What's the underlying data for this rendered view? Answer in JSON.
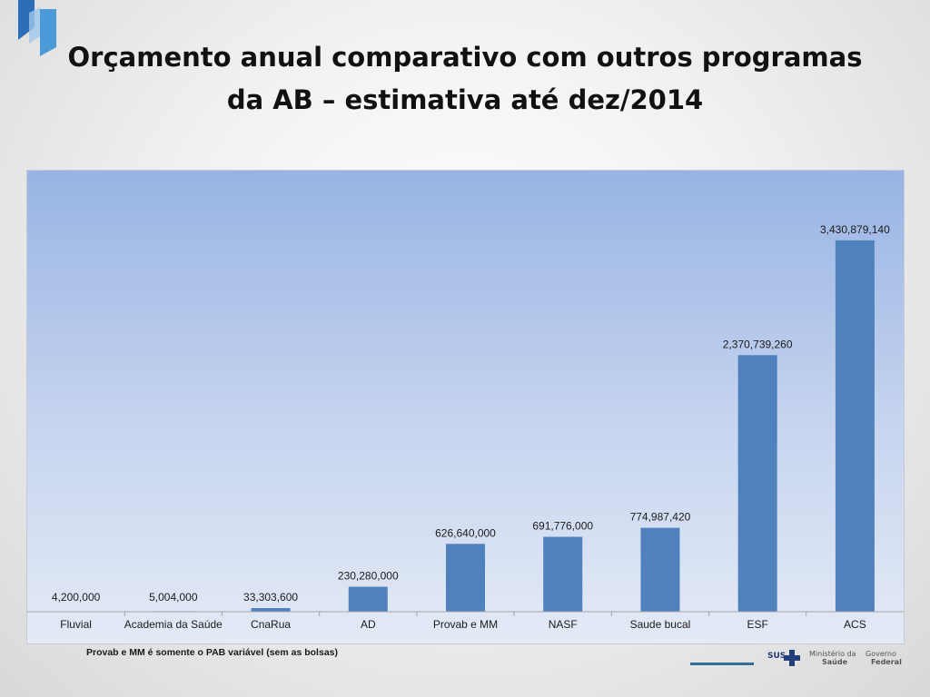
{
  "slide": {
    "title_line1": "Orçamento anual comparativo com outros programas",
    "title_line2": "da AB – estimativa até dez/2014",
    "footnote": "Provab e MM é somente o PAB variável (sem as bolsas)",
    "logos": {
      "sus": "SUS",
      "ministerio_line1": "Ministério da",
      "ministerio_line2": "Saúde",
      "governo_line1": "Governo",
      "governo_line2": "Federal"
    }
  },
  "colors": {
    "bar": "#4f81bd",
    "label": "#1a1a1a",
    "corner_logo": "#4a8fcf"
  },
  "chart_data": {
    "type": "bar",
    "title": "",
    "xlabel": "",
    "ylabel": "",
    "ylim": [
      0,
      4000000000
    ],
    "grid": false,
    "categories": [
      "Fluvial",
      "Academia da Saúde",
      "CnaRua",
      "AD",
      "Provab e MM",
      "NASF",
      "Saude bucal",
      "ESF",
      "ACS"
    ],
    "values": [
      4200000,
      5004000,
      33303600,
      230280000,
      626640000,
      691776000,
      774987420,
      2370739260,
      3430879140
    ],
    "data_labels": [
      "4,200,000",
      "5,004,000",
      "33,303,600",
      "230,280,000",
      "626,640,000",
      "691,776,000",
      "774,987,420",
      "2,370,739,260",
      "3,430,879,140"
    ]
  }
}
